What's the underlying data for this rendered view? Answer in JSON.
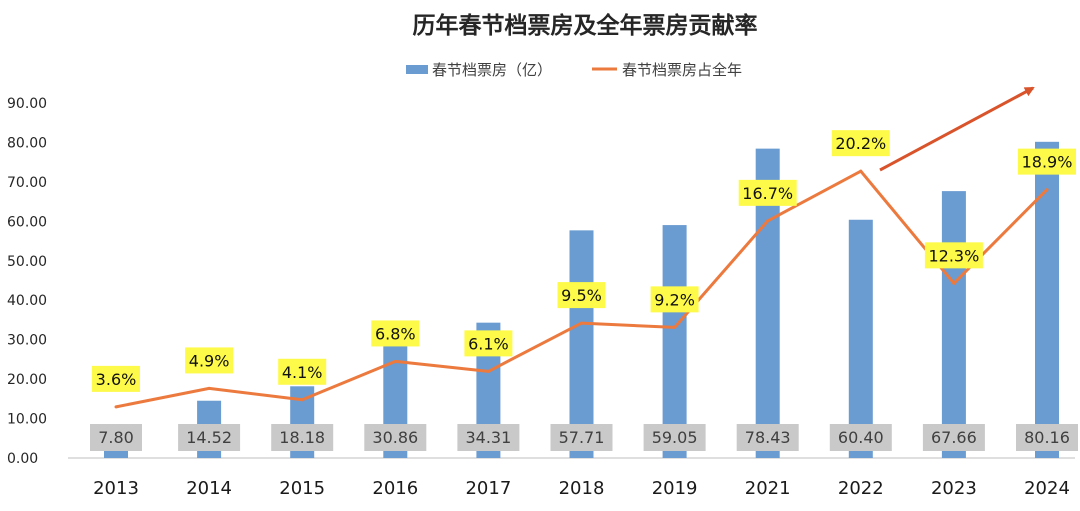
{
  "chart_data": {
    "type": "bar",
    "title": "历年春节档票房及全年票房贡献率",
    "categories": [
      "2013",
      "2014",
      "2015",
      "2016",
      "2017",
      "2018",
      "2019",
      "2021",
      "2022",
      "2023",
      "2024"
    ],
    "series": [
      {
        "name": "春节档票房（亿）",
        "type": "bar",
        "axis": "left",
        "values": [
          7.8,
          14.52,
          18.18,
          30.86,
          34.31,
          57.71,
          59.05,
          78.43,
          60.4,
          67.66,
          80.16
        ],
        "labels": [
          "7.80",
          "14.52",
          "18.18",
          "30.86",
          "34.31",
          "57.71",
          "59.05",
          "78.43",
          "60.40",
          "67.66",
          "80.16"
        ],
        "color": "#6a9bd1"
      },
      {
        "name": "春节档票房占全年",
        "type": "line",
        "axis": "secondary",
        "values": [
          3.6,
          4.9,
          4.1,
          6.8,
          6.1,
          9.5,
          9.2,
          16.7,
          20.2,
          12.3,
          18.9
        ],
        "labels": [
          "3.6%",
          "4.9%",
          "4.1%",
          "6.8%",
          "6.1%",
          "9.5%",
          "9.2%",
          "16.7%",
          "20.2%",
          "12.3%",
          "18.9%"
        ],
        "color": "#ec7a3e"
      }
    ],
    "yticks": [
      "0.00",
      "10.00",
      "20.00",
      "30.00",
      "40.00",
      "50.00",
      "60.00",
      "70.00",
      "80.00",
      "90.00"
    ],
    "ylim": [
      0,
      90
    ],
    "secondary_ylim": [
      0,
      25
    ],
    "legend_position": "top",
    "grid": false,
    "bar_label_bg": "#c9c9c9",
    "pct_label_bg": "#fdfa4a",
    "trend_arrow_color": "#d9532b"
  }
}
